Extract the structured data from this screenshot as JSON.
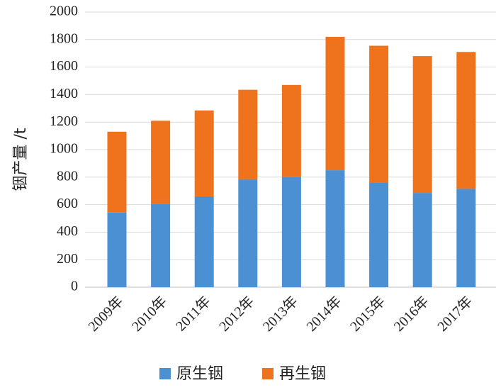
{
  "chart_data": {
    "type": "bar",
    "stacked": true,
    "categories": [
      "2009年",
      "2010年",
      "2011年",
      "2012年",
      "2013年",
      "2014年",
      "2015年",
      "2016年",
      "2017年"
    ],
    "series": [
      {
        "name": "原生铟",
        "color": "#4a90d2",
        "values": [
          545,
          605,
          660,
          785,
          800,
          850,
          760,
          685,
          715
        ]
      },
      {
        "name": "再生铟",
        "color": "#ee731c",
        "values": [
          585,
          605,
          625,
          650,
          670,
          970,
          995,
          995,
          995
        ]
      }
    ],
    "ylabel": "铟产量 /t",
    "xlabel": "",
    "ylim": [
      0,
      2000
    ],
    "yticks": [
      0,
      200,
      400,
      600,
      800,
      1000,
      1200,
      1400,
      1600,
      1800,
      2000
    ],
    "grid": true,
    "legend_position": "bottom"
  }
}
